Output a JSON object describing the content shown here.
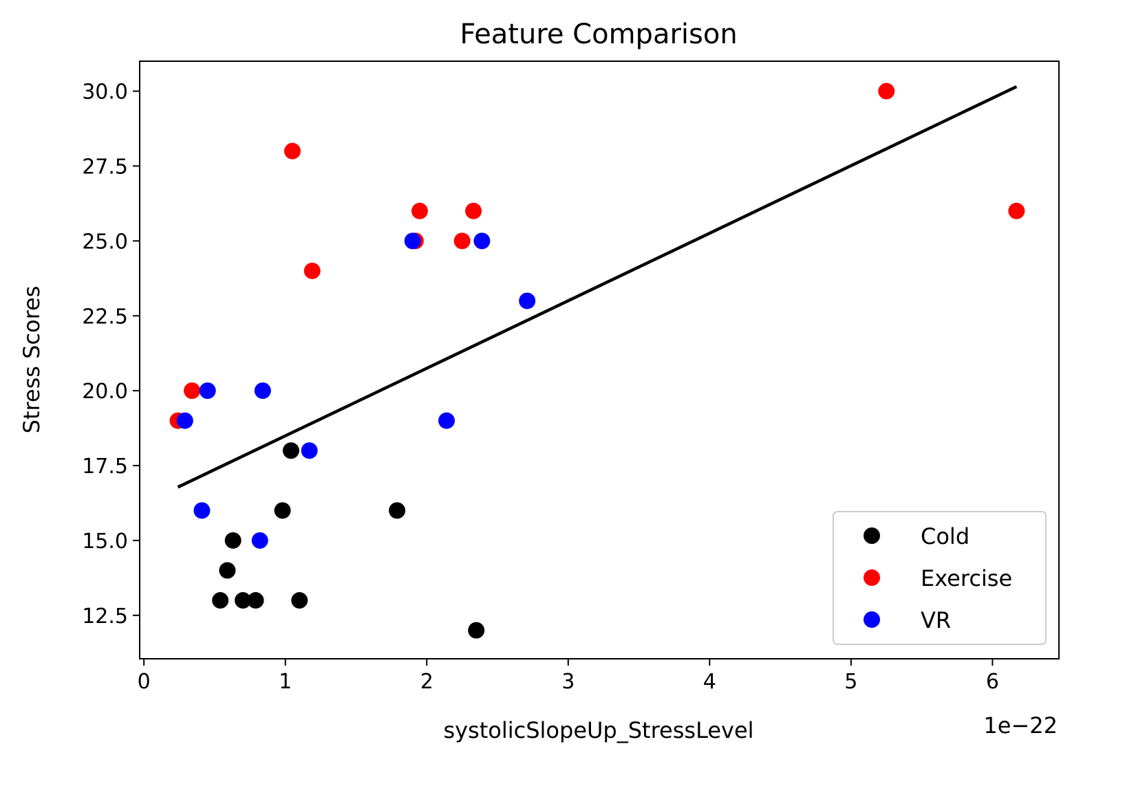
{
  "chart_data": {
    "type": "scatter",
    "title": "Feature Comparison",
    "xlabel": "systolicSlopeUp_StressLevel",
    "ylabel": "Stress Scores",
    "x_offset_label": "1e−22",
    "xlim": [
      -0.03,
      6.47
    ],
    "ylim": [
      11.05,
      31.0
    ],
    "x_ticks": [
      0,
      1,
      2,
      3,
      4,
      5,
      6
    ],
    "x_tick_labels": [
      "0",
      "1",
      "2",
      "3",
      "4",
      "5",
      "6"
    ],
    "y_ticks": [
      12.5,
      15.0,
      17.5,
      20.0,
      22.5,
      25.0,
      27.5,
      30.0
    ],
    "y_tick_labels": [
      "12.5",
      "15.0",
      "17.5",
      "20.0",
      "22.5",
      "25.0",
      "27.5",
      "30.0"
    ],
    "grid": false,
    "legend_position": "lower right",
    "series": [
      {
        "name": "Cold",
        "color": "#000000",
        "points": [
          [
            1.04,
            18
          ],
          [
            0.98,
            16
          ],
          [
            1.79,
            16
          ],
          [
            0.63,
            15
          ],
          [
            0.59,
            14
          ],
          [
            0.54,
            13
          ],
          [
            0.7,
            13
          ],
          [
            0.79,
            13
          ],
          [
            1.1,
            13
          ],
          [
            2.35,
            12
          ]
        ]
      },
      {
        "name": "Exercise",
        "color": "#ff0000",
        "points": [
          [
            5.25,
            30
          ],
          [
            1.05,
            28
          ],
          [
            1.95,
            26
          ],
          [
            2.33,
            26
          ],
          [
            6.17,
            26
          ],
          [
            1.92,
            25
          ],
          [
            2.25,
            25
          ],
          [
            1.19,
            24
          ],
          [
            0.34,
            20
          ],
          [
            0.24,
            19
          ]
        ]
      },
      {
        "name": "VR",
        "color": "#0000ff",
        "points": [
          [
            1.9,
            25
          ],
          [
            2.39,
            25
          ],
          [
            2.71,
            23
          ],
          [
            0.45,
            20
          ],
          [
            0.84,
            20
          ],
          [
            0.29,
            19
          ],
          [
            2.14,
            19
          ],
          [
            1.17,
            18
          ],
          [
            0.41,
            16
          ],
          [
            0.82,
            15
          ]
        ]
      }
    ],
    "trend_line": {
      "color": "#000000",
      "points": [
        [
          0.24,
          16.78
        ],
        [
          6.17,
          30.15
        ]
      ]
    }
  }
}
